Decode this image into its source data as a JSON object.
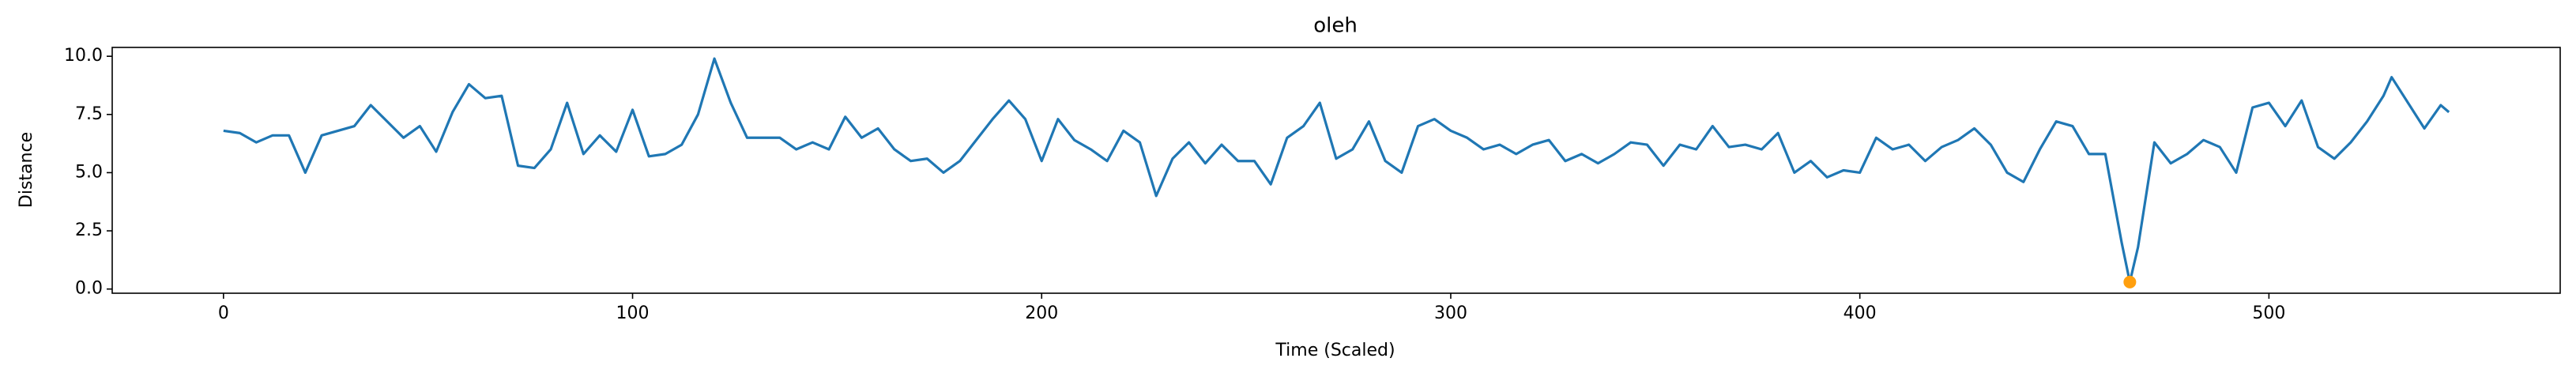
{
  "chart_data": {
    "type": "line",
    "title": "oleh",
    "x_label": "Time (Scaled)",
    "y_label": "Distance",
    "x": [
      0,
      4,
      8,
      12,
      16,
      20,
      24,
      28,
      32,
      36,
      40,
      44,
      48,
      52,
      56,
      60,
      64,
      68,
      72,
      76,
      80,
      84,
      88,
      92,
      96,
      100,
      104,
      108,
      112,
      116,
      120,
      124,
      128,
      132,
      136,
      140,
      144,
      148,
      152,
      156,
      160,
      164,
      168,
      172,
      176,
      180,
      184,
      188,
      192,
      196,
      200,
      204,
      208,
      212,
      216,
      220,
      224,
      228,
      232,
      236,
      240,
      244,
      248,
      252,
      256,
      260,
      264,
      268,
      272,
      276,
      280,
      284,
      288,
      292,
      296,
      300,
      304,
      308,
      312,
      316,
      320,
      324,
      328,
      332,
      336,
      340,
      344,
      348,
      352,
      356,
      360,
      364,
      368,
      372,
      376,
      380,
      384,
      388,
      392,
      396,
      400,
      404,
      408,
      412,
      416,
      420,
      424,
      428,
      432,
      436,
      440,
      444,
      448,
      452,
      456,
      460,
      464,
      466,
      468,
      472,
      476,
      480,
      484,
      488,
      492,
      496,
      500,
      504,
      508,
      512,
      516,
      520,
      524,
      528,
      530,
      534,
      538,
      542,
      544
    ],
    "series": [
      {
        "color": "#1f77b4",
        "values": [
          6.8,
          6.7,
          6.3,
          6.6,
          6.6,
          5.0,
          6.6,
          6.8,
          7.0,
          7.9,
          7.2,
          6.5,
          7.0,
          5.9,
          7.6,
          8.8,
          8.2,
          8.3,
          5.3,
          5.2,
          6.0,
          8.0,
          5.8,
          6.6,
          5.9,
          7.7,
          5.7,
          5.8,
          6.2,
          7.5,
          9.9,
          8.0,
          6.5,
          6.5,
          6.5,
          6.0,
          6.3,
          6.0,
          7.4,
          6.5,
          6.9,
          6.0,
          5.5,
          5.6,
          5.0,
          5.5,
          6.4,
          7.3,
          8.1,
          7.3,
          5.5,
          7.3,
          6.4,
          6.0,
          5.5,
          6.8,
          6.3,
          4.0,
          5.6,
          6.3,
          5.4,
          6.2,
          5.5,
          5.5,
          4.5,
          6.5,
          7.0,
          8.0,
          5.6,
          6.0,
          7.2,
          5.5,
          5.0,
          7.0,
          7.3,
          6.8,
          6.5,
          6.0,
          6.2,
          5.8,
          6.2,
          6.4,
          5.5,
          5.8,
          5.4,
          5.8,
          6.3,
          6.2,
          5.3,
          6.2,
          6.0,
          7.0,
          6.1,
          6.2,
          6.0,
          6.7,
          5.0,
          5.5,
          4.8,
          5.1,
          5.0,
          6.5,
          6.0,
          6.2,
          5.5,
          6.1,
          6.4,
          6.9,
          6.2,
          5.0,
          4.6,
          6.0,
          7.2,
          7.0,
          5.8,
          5.8,
          2.0,
          0.3,
          1.8,
          6.3,
          5.4,
          5.8,
          6.4,
          6.1,
          5.0,
          7.8,
          8.0,
          7.0,
          8.1,
          6.1,
          5.6,
          6.3,
          7.2,
          8.3,
          9.1,
          8.0,
          6.9,
          7.9,
          7.6
        ]
      }
    ],
    "markers": {
      "x": [
        466
      ],
      "values": [
        0.3
      ],
      "color": "#ff9f0e"
    },
    "xlim": [
      -27.2,
      571.2
    ],
    "ylim": [
      -0.18,
      10.38
    ],
    "xticks": [
      0,
      100,
      200,
      300,
      400,
      500
    ],
    "yticks": [
      {
        "value": 0,
        "label": "0.0"
      },
      2.5,
      {
        "value": 5,
        "label": "5.0"
      },
      7.5,
      {
        "value": 10,
        "label": "10.0"
      }
    ]
  }
}
